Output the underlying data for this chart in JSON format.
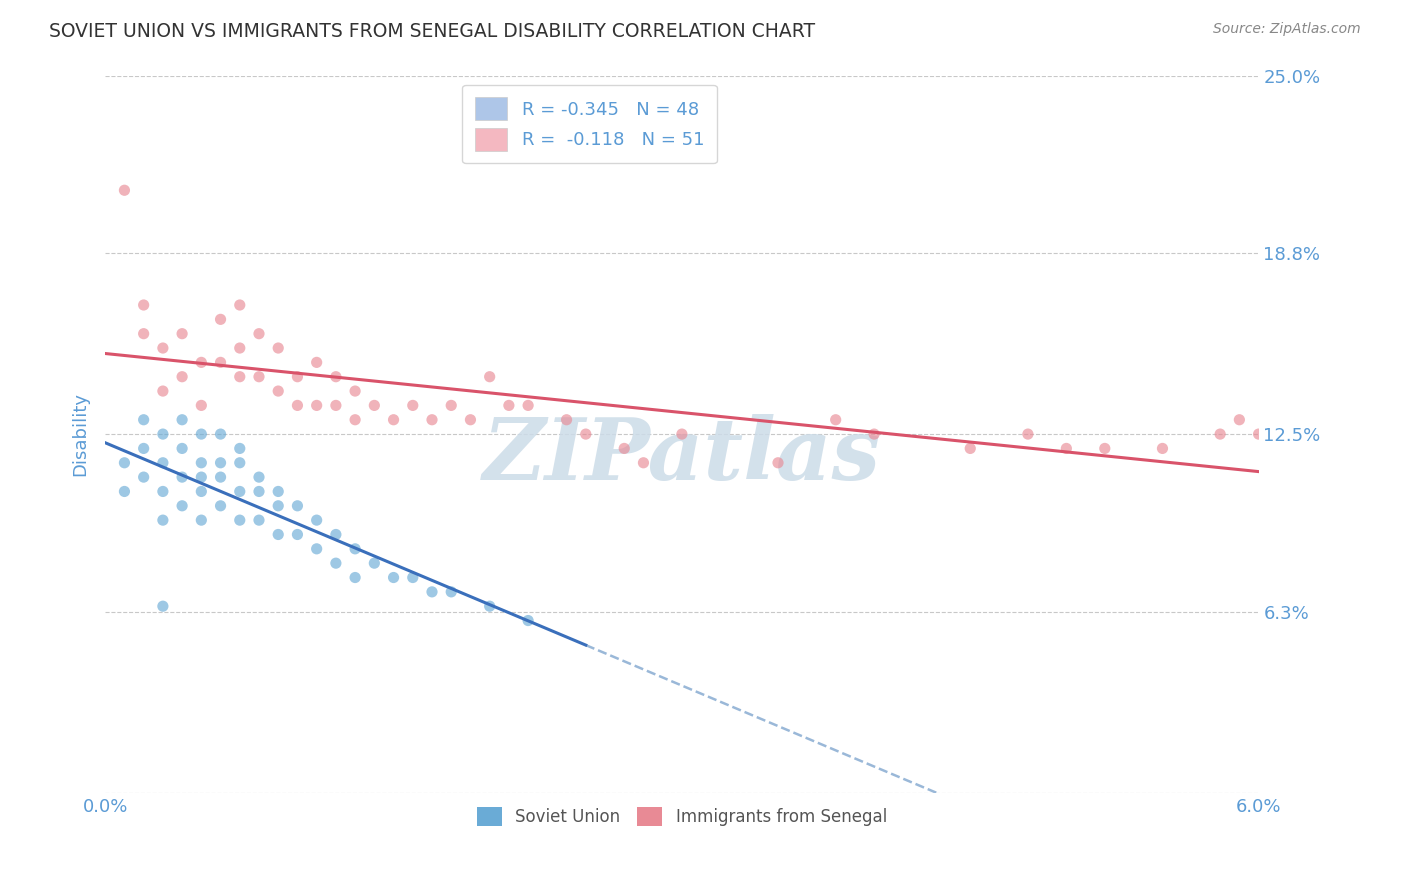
{
  "title": "SOVIET UNION VS IMMIGRANTS FROM SENEGAL DISABILITY CORRELATION CHART",
  "source": "Source: ZipAtlas.com",
  "ylabel": "Disability",
  "xmin": 0.0,
  "xmax": 0.06,
  "ymin": 0.0,
  "ymax": 0.25,
  "yticks": [
    0.0,
    0.063,
    0.125,
    0.188,
    0.25
  ],
  "ytick_labels": [
    "",
    "6.3%",
    "12.5%",
    "18.8%",
    "25.0%"
  ],
  "legend_entries": [
    {
      "label": "R = -0.345   N = 48",
      "color": "#aec6e8"
    },
    {
      "label": "R =  -0.118   N = 51",
      "color": "#f4b8c1"
    }
  ],
  "soviet_union_x": [
    0.001,
    0.001,
    0.002,
    0.002,
    0.002,
    0.003,
    0.003,
    0.003,
    0.003,
    0.004,
    0.004,
    0.004,
    0.004,
    0.005,
    0.005,
    0.005,
    0.005,
    0.005,
    0.006,
    0.006,
    0.006,
    0.006,
    0.007,
    0.007,
    0.007,
    0.007,
    0.008,
    0.008,
    0.008,
    0.009,
    0.009,
    0.009,
    0.01,
    0.01,
    0.011,
    0.011,
    0.012,
    0.012,
    0.013,
    0.013,
    0.014,
    0.015,
    0.016,
    0.017,
    0.018,
    0.02,
    0.022,
    0.003
  ],
  "soviet_union_y": [
    0.115,
    0.105,
    0.13,
    0.12,
    0.11,
    0.125,
    0.115,
    0.105,
    0.095,
    0.13,
    0.12,
    0.11,
    0.1,
    0.125,
    0.115,
    0.11,
    0.105,
    0.095,
    0.125,
    0.115,
    0.11,
    0.1,
    0.12,
    0.115,
    0.105,
    0.095,
    0.11,
    0.105,
    0.095,
    0.105,
    0.1,
    0.09,
    0.1,
    0.09,
    0.095,
    0.085,
    0.09,
    0.08,
    0.085,
    0.075,
    0.08,
    0.075,
    0.075,
    0.07,
    0.07,
    0.065,
    0.06,
    0.065
  ],
  "senegal_x": [
    0.001,
    0.002,
    0.002,
    0.003,
    0.003,
    0.004,
    0.004,
    0.005,
    0.005,
    0.006,
    0.006,
    0.007,
    0.007,
    0.007,
    0.008,
    0.008,
    0.009,
    0.009,
    0.01,
    0.01,
    0.011,
    0.011,
    0.012,
    0.012,
    0.013,
    0.013,
    0.014,
    0.015,
    0.016,
    0.017,
    0.018,
    0.019,
    0.02,
    0.021,
    0.022,
    0.024,
    0.025,
    0.027,
    0.028,
    0.03,
    0.035,
    0.038,
    0.04,
    0.045,
    0.048,
    0.05,
    0.052,
    0.055,
    0.058,
    0.059,
    0.06
  ],
  "senegal_y": [
    0.21,
    0.17,
    0.16,
    0.155,
    0.14,
    0.16,
    0.145,
    0.15,
    0.135,
    0.165,
    0.15,
    0.17,
    0.155,
    0.145,
    0.16,
    0.145,
    0.155,
    0.14,
    0.145,
    0.135,
    0.15,
    0.135,
    0.145,
    0.135,
    0.14,
    0.13,
    0.135,
    0.13,
    0.135,
    0.13,
    0.135,
    0.13,
    0.145,
    0.135,
    0.135,
    0.13,
    0.125,
    0.12,
    0.115,
    0.125,
    0.115,
    0.13,
    0.125,
    0.12,
    0.125,
    0.12,
    0.12,
    0.12,
    0.125,
    0.13,
    0.125
  ],
  "blue_dot_color": "#6aabd6",
  "pink_dot_color": "#e88a95",
  "blue_line_color": "#3a6fbb",
  "pink_line_color": "#d9536a",
  "dashed_line_color": "#9ab8d8",
  "bg_color": "#ffffff",
  "grid_color": "#c8c8c8",
  "axis_label_color": "#5b9bd5",
  "title_color": "#333333",
  "source_color": "#888888",
  "watermark_color": "#ccdce8",
  "dot_alpha": 0.65,
  "dot_size": 65
}
